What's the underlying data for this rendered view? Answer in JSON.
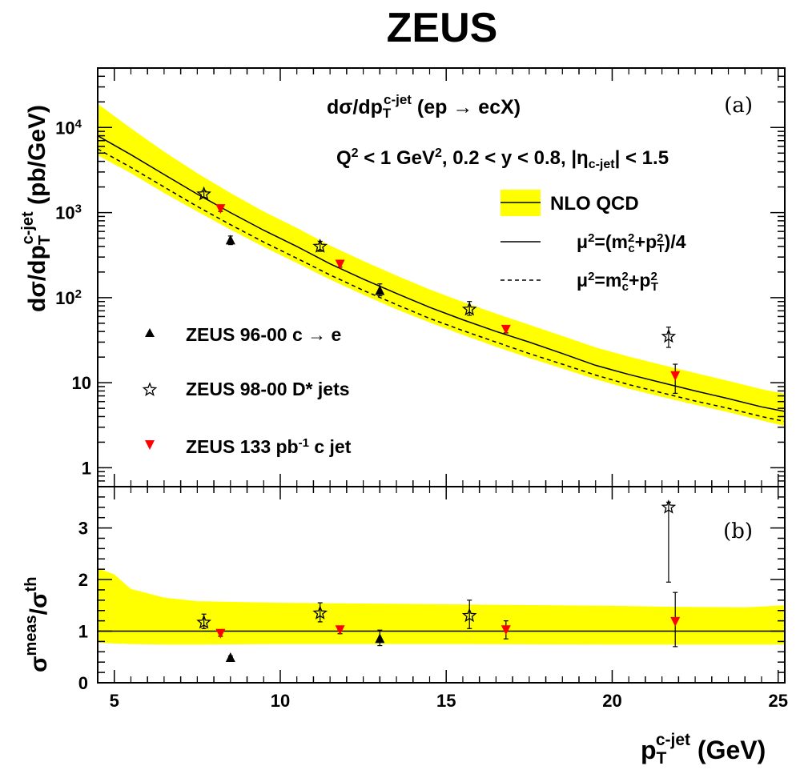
{
  "title": "ZEUS",
  "colors": {
    "band": "#ffff00",
    "red": "#ff0000",
    "black": "#000000"
  },
  "chart_data": [
    {
      "panel": "(a)",
      "type": "line",
      "scale_y": "log",
      "xlim": [
        4.5,
        25.2
      ],
      "ylim": [
        0.6,
        50000
      ],
      "ylabel": {
        "main": "dσ/dp",
        "sub": "T",
        "sup": "c-jet",
        "unit": " (pb/GeV)"
      },
      "xticks": [
        "5",
        "10",
        "15",
        "20",
        "25"
      ],
      "yticks": [
        {
          "value": 1,
          "label": "1"
        },
        {
          "value": 10,
          "label": "10"
        },
        {
          "value": 100,
          "label": "10",
          "exp": "2"
        },
        {
          "value": 1000,
          "label": "10",
          "exp": "3"
        },
        {
          "value": 10000,
          "label": "10",
          "exp": "4"
        }
      ],
      "annotation_process": {
        "main": "dσ/dp",
        "sub": "T",
        "sup": "c-jet",
        "rest": " (ep → ecX)"
      },
      "annotation_cuts": {
        "a": "Q",
        "a_sup": "2",
        "b": " < 1 GeV",
        "b_sup": "2",
        "c": ", 0.2 < y < 0.8, |η",
        "c_sub": "c-jet",
        "d": "| < 1.5"
      },
      "legend_theory": [
        {
          "label": "NLO QCD",
          "style": "band"
        },
        {
          "label": "μ²=(m²c+p²T)/4",
          "parts": [
            "μ",
            "2",
            "=(m",
            "2",
            "c",
            "+p",
            "2",
            "T",
            ")/4"
          ],
          "style": "solid"
        },
        {
          "label": "μ²=m²c+p²T",
          "parts": [
            "μ",
            "2",
            "=m",
            "2",
            "c",
            "+p",
            "2",
            "T"
          ],
          "style": "dashed"
        }
      ],
      "legend_data": [
        {
          "label": "ZEUS 96-00 c → e",
          "marker": "triangle-up"
        },
        {
          "label": "ZEUS 98-00 D* jets",
          "marker": "star"
        },
        {
          "label": "ZEUS 133 pb",
          "label_sup": "-1",
          "label_rest": " c jet",
          "marker": "triangle-down"
        }
      ],
      "theory": {
        "x": [
          4.5,
          5.5,
          6.5,
          7.5,
          8.5,
          9.5,
          10.5,
          11.5,
          12.5,
          13.5,
          14.5,
          15.5,
          16.5,
          17.5,
          18.5,
          19.5,
          20.5,
          21.5,
          22.5,
          23.5,
          24.5,
          25.2
        ],
        "central": [
          8000,
          4800,
          2800,
          1650,
          1000,
          620,
          400,
          250,
          165,
          112,
          77,
          55,
          40,
          30,
          22,
          16,
          12.5,
          10,
          8,
          6.5,
          5.2,
          4.6
        ],
        "dashed": [
          5600,
          3400,
          2000,
          1180,
          720,
          450,
          290,
          185,
          122,
          83,
          57,
          41,
          30,
          22,
          16.5,
          12.3,
          9.5,
          7.6,
          6.1,
          5.0,
          4.0,
          3.5
        ],
        "band_low": [
          4700,
          2900,
          1700,
          1030,
          630,
          395,
          255,
          163,
          108,
          73,
          51,
          36.5,
          26.5,
          19.5,
          14.7,
          11,
          8.5,
          6.8,
          5.5,
          4.5,
          3.6,
          3.1
        ],
        "band_high": [
          19000,
          9800,
          5200,
          2900,
          1700,
          1030,
          660,
          410,
          270,
          182,
          125,
          89,
          65,
          48,
          35.5,
          26,
          20.3,
          16.2,
          13,
          10.5,
          8.4,
          7.4
        ]
      },
      "series": [
        {
          "name": "ZEUS 96-00 c → e",
          "marker": "triangle-up",
          "color": "#000000",
          "points": [
            {
              "x": 8.5,
              "y": 470,
              "lo": 420,
              "hi": 530
            },
            {
              "x": 13,
              "y": 120,
              "lo": 105,
              "hi": 145
            }
          ]
        },
        {
          "name": "ZEUS 98-00 D* jets",
          "marker": "star",
          "color": "#000000",
          "points": [
            {
              "x": 7.7,
              "y": 1650,
              "lo": 1500,
              "hi": 1800
            },
            {
              "x": 11.2,
              "y": 400,
              "lo": 350,
              "hi": 460
            },
            {
              "x": 15.7,
              "y": 73,
              "lo": 62,
              "hi": 90
            },
            {
              "x": 21.7,
              "y": 35,
              "lo": 26,
              "hi": 45
            }
          ]
        },
        {
          "name": "ZEUS 133 pb-1 c jet",
          "marker": "triangle-down",
          "color": "#ff0000",
          "points": [
            {
              "x": 8.2,
              "y": 1100,
              "lo": 1030,
              "hi": 1180
            },
            {
              "x": 11.8,
              "y": 245,
              "lo": 228,
              "hi": 262
            },
            {
              "x": 16.8,
              "y": 42,
              "lo": 38.5,
              "hi": 46
            },
            {
              "x": 21.9,
              "y": 12,
              "lo": 7.5,
              "hi": 16.5
            }
          ]
        }
      ]
    },
    {
      "panel": "(b)",
      "type": "line",
      "scale_y": "linear",
      "xlim": [
        4.5,
        25.2
      ],
      "ylim": [
        0,
        3.8
      ],
      "ylabel": {
        "main": "σ",
        "sup": "meas",
        "mid": "/σ",
        "sup2": "th"
      },
      "xlabel": {
        "main": "p",
        "sub": "T",
        "sup": "c-jet",
        "unit": " (GeV)"
      },
      "xticks": [
        "5",
        "10",
        "15",
        "20",
        "25"
      ],
      "yticks": [
        "0",
        "1",
        "2",
        "3"
      ],
      "theory": {
        "x": [
          4.5,
          5,
          5.5,
          6.5,
          7.5,
          10,
          15,
          20,
          22,
          24,
          25.2
        ],
        "band_low": [
          0.78,
          0.76,
          0.75,
          0.74,
          0.74,
          0.75,
          0.75,
          0.74,
          0.74,
          0.74,
          0.74
        ],
        "band_high": [
          2.22,
          2.1,
          1.82,
          1.65,
          1.58,
          1.55,
          1.52,
          1.49,
          1.47,
          1.46,
          1.5
        ],
        "central": 1.0
      },
      "series": [
        {
          "name": "ZEUS 96-00 c → e",
          "marker": "triangle-up",
          "color": "#000000",
          "points": [
            {
              "x": 8.5,
              "y": 0.48,
              "lo": 0.44,
              "hi": 0.52
            },
            {
              "x": 13,
              "y": 0.85,
              "lo": 0.72,
              "hi": 1.02
            }
          ]
        },
        {
          "name": "ZEUS 98-00 D* jets",
          "marker": "star",
          "color": "#000000",
          "points": [
            {
              "x": 7.7,
              "y": 1.17,
              "lo": 1.05,
              "hi": 1.33
            },
            {
              "x": 11.2,
              "y": 1.35,
              "lo": 1.18,
              "hi": 1.55
            },
            {
              "x": 15.7,
              "y": 1.3,
              "lo": 1.05,
              "hi": 1.6
            },
            {
              "x": 21.7,
              "y": 3.4,
              "lo": 1.95,
              "hi": 3.5
            }
          ]
        },
        {
          "name": "ZEUS 133 pb-1 c jet",
          "marker": "triangle-down",
          "color": "#ff0000",
          "points": [
            {
              "x": 8.2,
              "y": 0.95,
              "lo": 0.9,
              "hi": 1.0
            },
            {
              "x": 11.8,
              "y": 1.02,
              "lo": 0.95,
              "hi": 1.08
            },
            {
              "x": 16.8,
              "y": 1.02,
              "lo": 0.85,
              "hi": 1.2
            },
            {
              "x": 21.9,
              "y": 1.18,
              "lo": 0.7,
              "hi": 1.75
            }
          ]
        }
      ]
    }
  ]
}
